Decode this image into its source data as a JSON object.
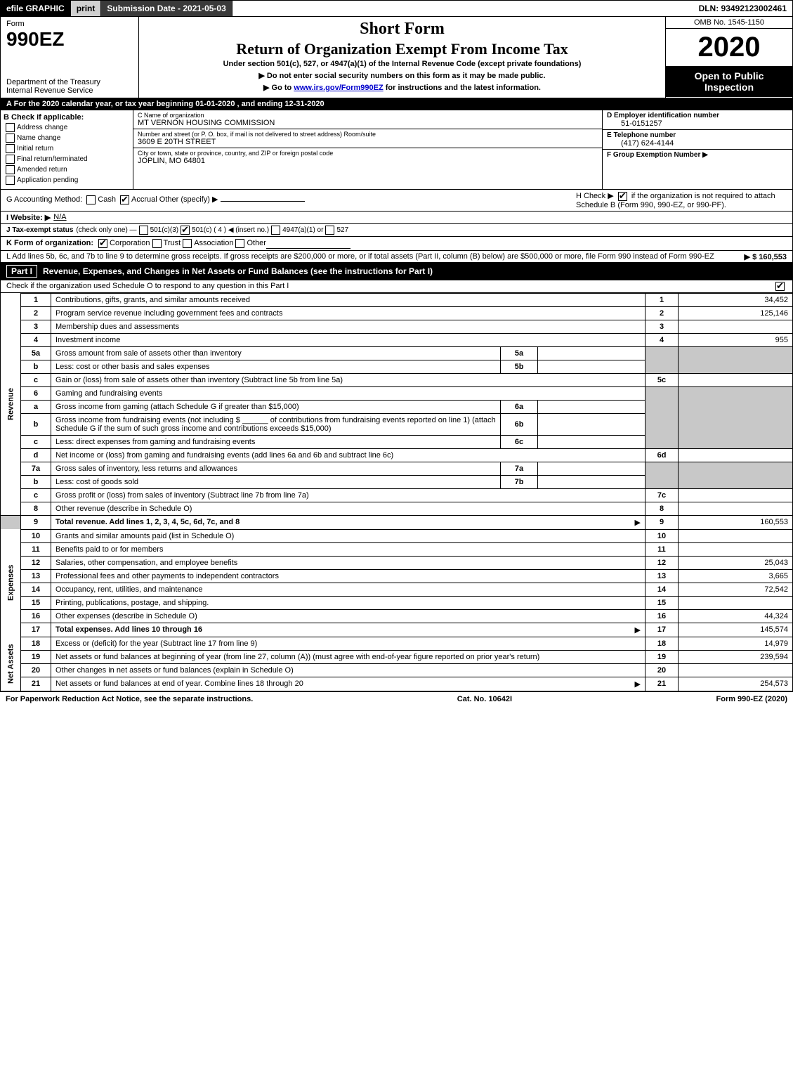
{
  "colors": {
    "black": "#000000",
    "white": "#ffffff",
    "darkgray": "#3a3a3a",
    "lightgray": "#d0d0d0",
    "shade": "#c8c8c8",
    "link": "#0000cc"
  },
  "topbar": {
    "efile": "efile GRAPHIC",
    "print": "print",
    "subdate_label": "Submission Date - 2021-05-03",
    "dln": "DLN: 93492123002461"
  },
  "header": {
    "form_label": "Form",
    "form_num": "990EZ",
    "dept1": "Department of the Treasury",
    "dept2": "Internal Revenue Service",
    "title1": "Short Form",
    "title2": "Return of Organization Exempt From Income Tax",
    "subtitle": "Under section 501(c), 527, or 4947(a)(1) of the Internal Revenue Code (except private foundations)",
    "note1": "▶ Do not enter social security numbers on this form as it may be made public.",
    "note2_pre": "▶ Go to ",
    "note2_link": "www.irs.gov/Form990EZ",
    "note2_post": " for instructions and the latest information.",
    "omb": "OMB No. 1545-1150",
    "year": "2020",
    "inspect": "Open to Public Inspection"
  },
  "row_a": "A For the 2020 calendar year, or tax year beginning 01-01-2020 , and ending 12-31-2020",
  "col_b": {
    "hdr": "B Check if applicable:",
    "opts": [
      "Address change",
      "Name change",
      "Initial return",
      "Final return/terminated",
      "Amended return",
      "Application pending"
    ]
  },
  "col_c": {
    "name_lbl": "C Name of organization",
    "name": "MT VERNON HOUSING COMMISSION",
    "addr_lbl": "Number and street (or P. O. box, if mail is not delivered to street address)     Room/suite",
    "addr": "3609 E 20TH STREET",
    "city_lbl": "City or town, state or province, country, and ZIP or foreign postal code",
    "city": "JOPLIN, MO  64801"
  },
  "col_d": {
    "ein_lbl": "D Employer identification number",
    "ein": "51-0151257",
    "tel_lbl": "E Telephone number",
    "tel": "(417) 624-4144",
    "grp_lbl": "F Group Exemption Number  ▶"
  },
  "row_g": {
    "lbl": "G Accounting Method:",
    "cash": "Cash",
    "accrual": "Accrual",
    "other": "Other (specify) ▶"
  },
  "row_h": {
    "pre": "H  Check ▶ ",
    "post": " if the organization is not required to attach Schedule B (Form 990, 990-EZ, or 990-PF)."
  },
  "row_i": {
    "lbl": "I Website: ▶",
    "val": "N/A"
  },
  "row_j": {
    "lbl": "J Tax-exempt status",
    "note": "(check only one) —",
    "o1": "501(c)(3)",
    "o2": "501(c) ( 4 ) ◀ (insert no.)",
    "o3": "4947(a)(1) or",
    "o4": "527"
  },
  "row_k": {
    "lbl": "K Form of organization:",
    "o1": "Corporation",
    "o2": "Trust",
    "o3": "Association",
    "o4": "Other"
  },
  "row_l": {
    "text": "L Add lines 5b, 6c, and 7b to line 9 to determine gross receipts. If gross receipts are $200,000 or more, or if total assets (Part II, column (B) below) are $500,000 or more, file Form 990 instead of Form 990-EZ",
    "amt": "▶ $ 160,553"
  },
  "part1": {
    "num": "Part I",
    "title": "Revenue, Expenses, and Changes in Net Assets or Fund Balances (see the instructions for Part I)",
    "sub": "Check if the organization used Schedule O to respond to any question in this Part I"
  },
  "sidelabels": {
    "rev": "Revenue",
    "exp": "Expenses",
    "net": "Net Assets"
  },
  "lines": {
    "l1": {
      "n": "1",
      "d": "Contributions, gifts, grants, and similar amounts received",
      "amt": "34,452"
    },
    "l2": {
      "n": "2",
      "d": "Program service revenue including government fees and contracts",
      "amt": "125,146"
    },
    "l3": {
      "n": "3",
      "d": "Membership dues and assessments",
      "amt": ""
    },
    "l4": {
      "n": "4",
      "d": "Investment income",
      "amt": "955"
    },
    "l5a": {
      "n": "5a",
      "d": "Gross amount from sale of assets other than inventory",
      "box": "5a"
    },
    "l5b": {
      "n": "b",
      "d": "Less: cost or other basis and sales expenses",
      "box": "5b"
    },
    "l5c": {
      "n": "c",
      "d": "Gain or (loss) from sale of assets other than inventory (Subtract line 5b from line 5a)",
      "nb": "5c",
      "amt": ""
    },
    "l6": {
      "n": "6",
      "d": "Gaming and fundraising events"
    },
    "l6a": {
      "n": "a",
      "d": "Gross income from gaming (attach Schedule G if greater than $15,000)",
      "box": "6a"
    },
    "l6b": {
      "n": "b",
      "d": "Gross income from fundraising events (not including $ ______ of contributions from fundraising events reported on line 1) (attach Schedule G if the sum of such gross income and contributions exceeds $15,000)",
      "box": "6b"
    },
    "l6c": {
      "n": "c",
      "d": "Less: direct expenses from gaming and fundraising events",
      "box": "6c"
    },
    "l6d": {
      "n": "d",
      "d": "Net income or (loss) from gaming and fundraising events (add lines 6a and 6b and subtract line 6c)",
      "nb": "6d",
      "amt": ""
    },
    "l7a": {
      "n": "7a",
      "d": "Gross sales of inventory, less returns and allowances",
      "box": "7a"
    },
    "l7b": {
      "n": "b",
      "d": "Less: cost of goods sold",
      "box": "7b"
    },
    "l7c": {
      "n": "c",
      "d": "Gross profit or (loss) from sales of inventory (Subtract line 7b from line 7a)",
      "nb": "7c",
      "amt": ""
    },
    "l8": {
      "n": "8",
      "d": "Other revenue (describe in Schedule O)",
      "nb": "8",
      "amt": ""
    },
    "l9": {
      "n": "9",
      "d": "Total revenue. Add lines 1, 2, 3, 4, 5c, 6d, 7c, and 8",
      "nb": "9",
      "amt": "160,553",
      "arrow": true,
      "bold": true
    },
    "l10": {
      "n": "10",
      "d": "Grants and similar amounts paid (list in Schedule O)",
      "nb": "10",
      "amt": ""
    },
    "l11": {
      "n": "11",
      "d": "Benefits paid to or for members",
      "nb": "11",
      "amt": ""
    },
    "l12": {
      "n": "12",
      "d": "Salaries, other compensation, and employee benefits",
      "nb": "12",
      "amt": "25,043"
    },
    "l13": {
      "n": "13",
      "d": "Professional fees and other payments to independent contractors",
      "nb": "13",
      "amt": "3,665"
    },
    "l14": {
      "n": "14",
      "d": "Occupancy, rent, utilities, and maintenance",
      "nb": "14",
      "amt": "72,542"
    },
    "l15": {
      "n": "15",
      "d": "Printing, publications, postage, and shipping.",
      "nb": "15",
      "amt": ""
    },
    "l16": {
      "n": "16",
      "d": "Other expenses (describe in Schedule O)",
      "nb": "16",
      "amt": "44,324"
    },
    "l17": {
      "n": "17",
      "d": "Total expenses. Add lines 10 through 16",
      "nb": "17",
      "amt": "145,574",
      "arrow": true,
      "bold": true
    },
    "l18": {
      "n": "18",
      "d": "Excess or (deficit) for the year (Subtract line 17 from line 9)",
      "nb": "18",
      "amt": "14,979"
    },
    "l19": {
      "n": "19",
      "d": "Net assets or fund balances at beginning of year (from line 27, column (A)) (must agree with end-of-year figure reported on prior year's return)",
      "nb": "19",
      "amt": "239,594"
    },
    "l20": {
      "n": "20",
      "d": "Other changes in net assets or fund balances (explain in Schedule O)",
      "nb": "20",
      "amt": ""
    },
    "l21": {
      "n": "21",
      "d": "Net assets or fund balances at end of year. Combine lines 18 through 20",
      "nb": "21",
      "amt": "254,573",
      "arrow": true
    }
  },
  "footer": {
    "left": "For Paperwork Reduction Act Notice, see the separate instructions.",
    "mid": "Cat. No. 10642I",
    "right": "Form 990-EZ (2020)"
  }
}
